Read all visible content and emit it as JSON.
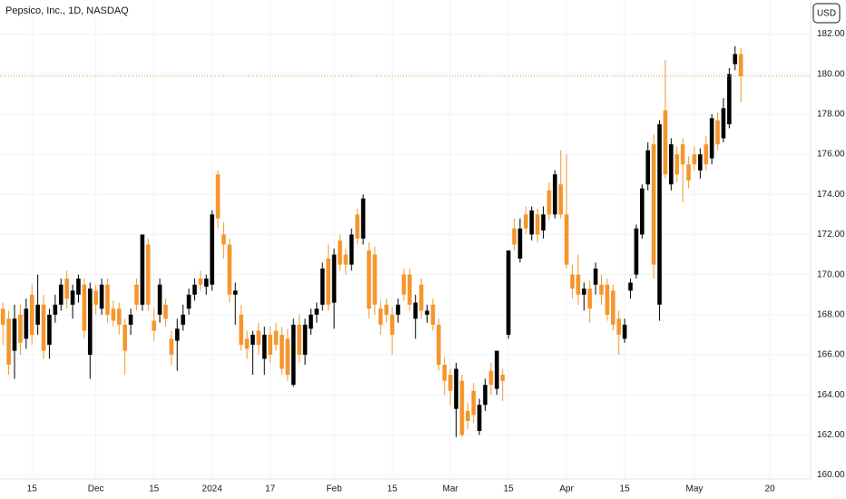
{
  "chart_data": {
    "type": "candlestick",
    "title": "Pepsico, Inc., 1D, NASDAQ",
    "currency": "USD",
    "up_color": "#000000",
    "down_color": "#f5962d",
    "grid": true,
    "last_price_line": true,
    "ylim": [
      159.8,
      183.7
    ],
    "yticks": [
      {
        "value": 160,
        "label": "160.00"
      },
      {
        "value": 162,
        "label": "162.00"
      },
      {
        "value": 164,
        "label": "164.00"
      },
      {
        "value": 166,
        "label": "166.00"
      },
      {
        "value": 168,
        "label": "168.00"
      },
      {
        "value": 170,
        "label": "170.00"
      },
      {
        "value": 172,
        "label": "172.00"
      },
      {
        "value": 174,
        "label": "174.00"
      },
      {
        "value": 176,
        "label": "176.00"
      },
      {
        "value": 178,
        "label": "178.00"
      },
      {
        "value": 180,
        "label": "180.00"
      },
      {
        "value": 182,
        "label": "182.00"
      }
    ],
    "xlim": [
      -0.5,
      139
    ],
    "xticks": [
      {
        "value": 5,
        "label": "15"
      },
      {
        "value": 16,
        "label": "Dec"
      },
      {
        "value": 26,
        "label": "15"
      },
      {
        "value": 36,
        "label": "2024"
      },
      {
        "value": 46,
        "label": "17"
      },
      {
        "value": 57,
        "label": "Feb"
      },
      {
        "value": 67,
        "label": "15"
      },
      {
        "value": 77,
        "label": "Mar"
      },
      {
        "value": 87,
        "label": "15"
      },
      {
        "value": 97,
        "label": "Apr"
      },
      {
        "value": 107,
        "label": "15"
      },
      {
        "value": 119,
        "label": "May"
      },
      {
        "value": 132,
        "label": "20"
      }
    ],
    "candles": [
      [
        168.3,
        168.6,
        166.5,
        167.5
      ],
      [
        167.8,
        168.2,
        165,
        165.5
      ],
      [
        166.2,
        168.5,
        164.8,
        167.8
      ],
      [
        168,
        168.5,
        166,
        166.6
      ],
      [
        166.8,
        168.8,
        166.3,
        168.3
      ],
      [
        169,
        169.5,
        166.5,
        167
      ],
      [
        167.5,
        170,
        167,
        168.5
      ],
      [
        168.5,
        169,
        165.8,
        166.2
      ],
      [
        166.5,
        168.3,
        165.8,
        168
      ],
      [
        168,
        169,
        167.6,
        168.5
      ],
      [
        168.5,
        169.8,
        168.2,
        169.5
      ],
      [
        169.8,
        170.2,
        168.3,
        168.8
      ],
      [
        168.5,
        169.5,
        167.8,
        169.2
      ],
      [
        169,
        170,
        168.6,
        169.8
      ],
      [
        169.5,
        169.8,
        166.8,
        167.2
      ],
      [
        166,
        169.6,
        164.8,
        169.3
      ],
      [
        169.2,
        169.5,
        168,
        168.5
      ],
      [
        168.3,
        169.8,
        168,
        169.5
      ],
      [
        169.5,
        169.8,
        167.6,
        168
      ],
      [
        168.3,
        168.7,
        167.4,
        167.7
      ],
      [
        168.3,
        168.6,
        167,
        167.5
      ],
      [
        167.5,
        167.8,
        165,
        166.2
      ],
      [
        167.5,
        168.3,
        167,
        168
      ],
      [
        169.5,
        169.8,
        168.2,
        168.5
      ],
      [
        168.5,
        172,
        168.2,
        172
      ],
      [
        171.5,
        171.8,
        168.2,
        168.5
      ],
      [
        167.7,
        168.3,
        166.7,
        167.2
      ],
      [
        168,
        169.8,
        167.6,
        169.5
      ],
      [
        168.5,
        168.8,
        167.4,
        167.8
      ],
      [
        166.8,
        167.2,
        165.5,
        166
      ],
      [
        166.7,
        167.8,
        165.2,
        167.3
      ],
      [
        167.5,
        168.5,
        167.2,
        168
      ],
      [
        168.3,
        169.3,
        168,
        169
      ],
      [
        169,
        169.8,
        168.7,
        169.5
      ],
      [
        169.8,
        170.2,
        169.2,
        169.5
      ],
      [
        169.4,
        170,
        169,
        169.8
      ],
      [
        169.5,
        173.2,
        169.2,
        173
      ],
      [
        175,
        175.2,
        172.3,
        172.8
      ],
      [
        172,
        172.6,
        170.8,
        171.5
      ],
      [
        171.5,
        171.8,
        168.6,
        169
      ],
      [
        169,
        169.6,
        167.5,
        169.2
      ],
      [
        168,
        168.5,
        166.2,
        166.5
      ],
      [
        166.8,
        167.2,
        165.8,
        166.3
      ],
      [
        166.5,
        167.2,
        165,
        167
      ],
      [
        167.2,
        167.6,
        166,
        166.5
      ],
      [
        165.8,
        167.4,
        165,
        167
      ],
      [
        167,
        167.4,
        165.6,
        166
      ],
      [
        167.2,
        167.6,
        166.2,
        166.5
      ],
      [
        167,
        167.4,
        165,
        165.3
      ],
      [
        166.8,
        167.3,
        164.7,
        165
      ],
      [
        164.5,
        167.8,
        164.4,
        167.5
      ],
      [
        167.5,
        168,
        165.6,
        166
      ],
      [
        166,
        167.8,
        165.5,
        167.5
      ],
      [
        167.3,
        168.3,
        167,
        168
      ],
      [
        168,
        168.6,
        167.6,
        168.3
      ],
      [
        168.5,
        170.6,
        168.2,
        170.3
      ],
      [
        170.8,
        171.5,
        168.2,
        168.5
      ],
      [
        168.6,
        171.3,
        167.3,
        171
      ],
      [
        171.7,
        172,
        170.2,
        170.5
      ],
      [
        171,
        171.3,
        170,
        170.5
      ],
      [
        170.5,
        172.3,
        170.2,
        172
      ],
      [
        173,
        173.3,
        171.5,
        171.8
      ],
      [
        171.8,
        174,
        171.5,
        173.8
      ],
      [
        171.2,
        171.6,
        167.8,
        168.3
      ],
      [
        171,
        171.4,
        168,
        168.5
      ],
      [
        168.3,
        168.7,
        167,
        167.5
      ],
      [
        168.5,
        168.8,
        167.6,
        168
      ],
      [
        168,
        168.4,
        166,
        167
      ],
      [
        168,
        168.8,
        167.6,
        168.5
      ],
      [
        170,
        170.3,
        168.7,
        169
      ],
      [
        170,
        170.3,
        168.2,
        168.5
      ],
      [
        167.8,
        169,
        166.8,
        168.6
      ],
      [
        169.5,
        169.8,
        167.8,
        168.2
      ],
      [
        168,
        168.5,
        167.6,
        168.2
      ],
      [
        168.5,
        168.8,
        167.2,
        167.5
      ],
      [
        167.5,
        167.8,
        165.2,
        165.5
      ],
      [
        165.5,
        165.9,
        164,
        164.7
      ],
      [
        165,
        165.3,
        163.5,
        164.2
      ],
      [
        163.3,
        165.6,
        161.9,
        165.3
      ],
      [
        164.7,
        165,
        161.9,
        162
      ],
      [
        163.2,
        163.6,
        162.3,
        162.7
      ],
      [
        164.2,
        164.6,
        162.6,
        163
      ],
      [
        162.2,
        163.8,
        162,
        163.5
      ],
      [
        163.5,
        164.8,
        163.2,
        164.5
      ],
      [
        165.2,
        165.6,
        164,
        164.5
      ],
      [
        164.3,
        166.2,
        164,
        166.2
      ],
      [
        165,
        165.3,
        163.7,
        164.7
      ],
      [
        167,
        171.2,
        166.8,
        171.2
      ],
      [
        172.3,
        172.8,
        171.2,
        171.5
      ],
      [
        170.8,
        172.8,
        170.6,
        172.3
      ],
      [
        173,
        173.4,
        172,
        172.3
      ],
      [
        172,
        173.4,
        171.7,
        173.2
      ],
      [
        173,
        173.3,
        171.6,
        172
      ],
      [
        172.2,
        173.4,
        171.8,
        173
      ],
      [
        174.2,
        174.6,
        172.7,
        173
      ],
      [
        173,
        175.2,
        172.8,
        175
      ],
      [
        174.5,
        176.2,
        172.8,
        173
      ],
      [
        173,
        176,
        170.3,
        170.5
      ],
      [
        170,
        170.5,
        168.8,
        169.3
      ],
      [
        170,
        171,
        168.5,
        169
      ],
      [
        169,
        169.6,
        168.2,
        169.3
      ],
      [
        169.3,
        169.7,
        167.6,
        168.3
      ],
      [
        169.5,
        170.6,
        169,
        170.3
      ],
      [
        169.5,
        170,
        168.5,
        169
      ],
      [
        169.5,
        169.8,
        167.7,
        168
      ],
      [
        169.2,
        169.5,
        167.2,
        167.5
      ],
      [
        167.8,
        168.2,
        166,
        167
      ],
      [
        166.8,
        167.8,
        166.6,
        167.5
      ],
      [
        169.2,
        169.8,
        168.8,
        169.6
      ],
      [
        170,
        172.5,
        169.8,
        172.3
      ],
      [
        172,
        174.5,
        171.8,
        174.3
      ],
      [
        174.5,
        176.6,
        174.2,
        176.2
      ],
      [
        176.5,
        177,
        169.8,
        170.5
      ],
      [
        168.5,
        177.7,
        167.7,
        177.5
      ],
      [
        178.2,
        180.7,
        174.8,
        175
      ],
      [
        174.5,
        176.8,
        174.2,
        176.5
      ],
      [
        176,
        176.4,
        174.6,
        175
      ],
      [
        176.5,
        176.8,
        173.6,
        175.5
      ],
      [
        175.5,
        175.9,
        174.3,
        174.7
      ],
      [
        176,
        176.4,
        175.2,
        175.5
      ],
      [
        175.2,
        176.3,
        174.8,
        176
      ],
      [
        176.5,
        176.9,
        175.2,
        175.5
      ],
      [
        175.8,
        178,
        175.5,
        177.8
      ],
      [
        177.7,
        178.1,
        176.2,
        176.5
      ],
      [
        176.8,
        178.8,
        176.6,
        178.3
      ],
      [
        177.5,
        180.3,
        177.3,
        180
      ],
      [
        180.5,
        181.4,
        180.2,
        181
      ],
      [
        181,
        181.3,
        178.6,
        179.9
      ]
    ]
  }
}
